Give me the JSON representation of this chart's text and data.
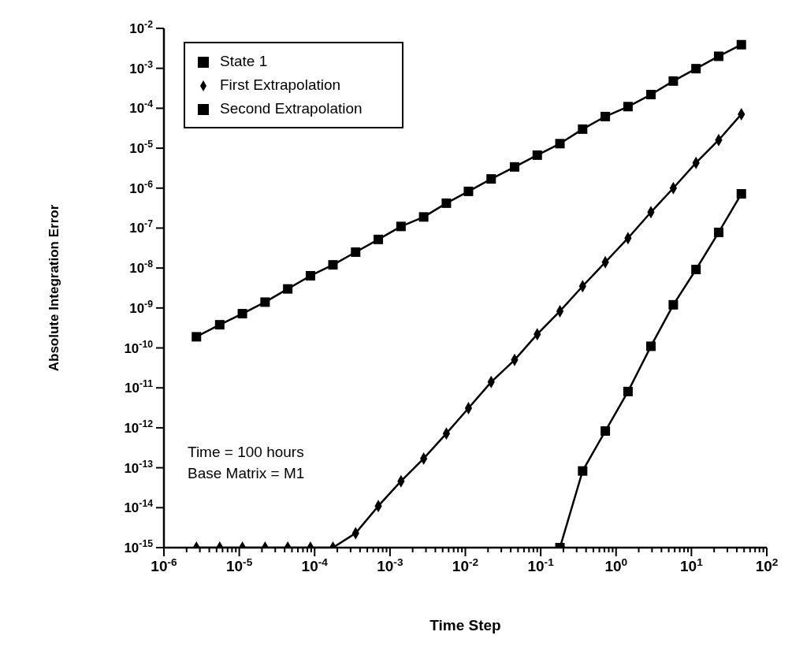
{
  "chart_data": {
    "type": "line",
    "xlabel": "Time Step",
    "ylabel": "Absolute  Integration  Error",
    "annotations": [
      "Time = 100 hours",
      "Base Matrix = M1"
    ],
    "x": [
      2.7e-06,
      5.5e-06,
      1.1e-05,
      2.2e-05,
      4.4e-05,
      8.8e-05,
      0.000175,
      0.00035,
      0.0007,
      0.0014,
      0.0028,
      0.0056,
      0.011,
      0.022,
      0.045,
      0.09,
      0.18,
      0.36,
      0.72,
      1.44,
      2.9,
      5.75,
      11.5,
      23,
      46
    ],
    "series": [
      {
        "name": "State 1",
        "color": "#000000",
        "marker": "square",
        "values": [
          1.9e-10,
          3.8e-10,
          7.2e-10,
          1.4e-09,
          3e-09,
          6.4e-09,
          1.2e-08,
          2.5e-08,
          5.2e-08,
          1.1e-07,
          1.9e-07,
          4.2e-07,
          8.3e-07,
          1.7e-06,
          3.4e-06,
          6.7e-06,
          1.3e-05,
          3e-05,
          6.2e-05,
          0.00011,
          0.00022,
          0.00048,
          0.00098,
          0.002,
          0.0039
        ]
      },
      {
        "name": "First Extrapolation",
        "color": "#000000",
        "marker": "diamond",
        "values": [
          1e-15,
          1e-15,
          1e-15,
          1e-15,
          1e-15,
          1e-15,
          1e-15,
          2.3e-15,
          1.1e-14,
          4.6e-14,
          1.7e-13,
          7.2e-13,
          3.1e-12,
          1.4e-11,
          5e-11,
          2.2e-10,
          8.3e-10,
          3.5e-09,
          1.4e-08,
          5.6e-08,
          2.5e-07,
          1e-06,
          4.3e-06,
          1.6e-05,
          7.1e-05
        ]
      },
      {
        "name": "Second Extrapolation",
        "color": "#000000",
        "marker": "square",
        "x": [
          0.18,
          0.36,
          0.72,
          1.44,
          2.9,
          5.75,
          11.5,
          23,
          46
        ],
        "values": [
          1e-15,
          8.3e-14,
          8.3e-13,
          8.1e-12,
          1.1e-10,
          1.2e-09,
          9.2e-09,
          7.8e-08,
          7.2e-07
        ]
      }
    ],
    "log": "xy",
    "legend": "top left",
    "line_style": "solid",
    "xlim": [
      1e-06,
      100
    ],
    "ylim": [
      1e-15,
      0.01
    ],
    "xticks": [
      {
        "value": 1e-06,
        "label": "10$^{-6}$"
      },
      {
        "value": 2e-06,
        "label": null
      },
      {
        "value": 3e-06,
        "label": null
      },
      {
        "value": 4e-06,
        "label": null
      },
      {
        "value": 5e-06,
        "label": null
      },
      {
        "value": 6e-06,
        "label": null
      },
      {
        "value": 7e-06,
        "label": null
      },
      {
        "value": 8e-06,
        "label": null
      },
      {
        "value": 9e-06,
        "label": null
      },
      {
        "value": 1e-05,
        "label": "10$^{-5}$"
      },
      {
        "value": 2e-05,
        "label": null
      },
      {
        "value": 3e-05,
        "label": null
      },
      {
        "value": 4e-05,
        "label": null
      },
      {
        "value": 5e-05,
        "label": null
      },
      {
        "value": 6e-05,
        "label": null
      },
      {
        "value": 7e-05,
        "label": null
      },
      {
        "value": 8e-05,
        "label": null
      },
      {
        "value": 9e-05,
        "label": null
      },
      {
        "value": 0.0001,
        "label": "10$^{-4}$"
      },
      {
        "value": 0.0002,
        "label": null
      },
      {
        "value": 0.0003,
        "label": null
      },
      {
        "value": 0.0004,
        "label": null
      },
      {
        "value": 0.0005,
        "label": null
      },
      {
        "value": 0.0006,
        "label": null
      },
      {
        "value": 0.0007,
        "label": null
      },
      {
        "value": 0.0008,
        "label": null
      },
      {
        "value": 0.0009,
        "label": null
      },
      {
        "value": 0.001,
        "label": "10$^{-3}$"
      },
      {
        "value": 0.002,
        "label": null
      },
      {
        "value": 0.003,
        "label": null
      },
      {
        "value": 0.004,
        "label": null
      },
      {
        "value": 0.005,
        "label": null
      },
      {
        "value": 0.006,
        "label": null
      },
      {
        "value": 0.007,
        "label": null
      },
      {
        "value": 0.008,
        "label": null
      },
      {
        "value": 0.009,
        "label": null
      },
      {
        "value": 0.01,
        "label": "10$^{-2}$"
      },
      {
        "value": 0.02,
        "label": null
      },
      {
        "value": 0.03,
        "label": null
      },
      {
        "value": 0.04,
        "label": null
      },
      {
        "value": 0.05,
        "label": null
      },
      {
        "value": 0.06,
        "label": null
      },
      {
        "value": 0.07,
        "label": null
      },
      {
        "value": 0.08,
        "label": null
      },
      {
        "value": 0.09,
        "label": null
      },
      {
        "value": 0.1,
        "label": "10$^{-1}$"
      },
      {
        "value": 0.2,
        "label": null
      },
      {
        "value": 0.3,
        "label": null
      },
      {
        "value": 0.4,
        "label": null
      },
      {
        "value": 0.5,
        "label": null
      },
      {
        "value": 0.6,
        "label": null
      },
      {
        "value": 0.7,
        "label": null
      },
      {
        "value": 0.8,
        "label": null
      },
      {
        "value": 0.9,
        "label": null
      },
      {
        "value": 1,
        "label": "10$^{0}$"
      },
      {
        "value": 2,
        "label": null
      },
      {
        "value": 3,
        "label": null
      },
      {
        "value": 4,
        "label": null
      },
      {
        "value": 5,
        "label": null
      },
      {
        "value": 6,
        "label": null
      },
      {
        "value": 7,
        "label": null
      },
      {
        "value": 8,
        "label": null
      },
      {
        "value": 9,
        "label": null
      },
      {
        "value": 10,
        "label": "10$^{1}$"
      },
      {
        "value": 20,
        "label": null
      },
      {
        "value": 30,
        "label": null
      },
      {
        "value": 40,
        "label": null
      },
      {
        "value": 50,
        "label": null
      },
      {
        "value": 60,
        "label": null
      },
      {
        "value": 70,
        "label": null
      },
      {
        "value": 80,
        "label": null
      },
      {
        "value": 90,
        "label": null
      },
      {
        "value": 100,
        "label": "10$^{2}$"
      }
    ],
    "yticks": [
      {
        "value": 1e-15,
        "label": "10$^{-15}$"
      },
      {
        "value": 1e-14,
        "label": "10$^{-14}$"
      },
      {
        "value": 1e-13,
        "label": "10$^{-13}$"
      },
      {
        "value": 1e-12,
        "label": "10$^{-12}$"
      },
      {
        "value": 1e-11,
        "label": "10$^{-11}$"
      },
      {
        "value": 1e-10,
        "label": "10$^{-10}$"
      },
      {
        "value": 1e-09,
        "label": "10$^{-9}$"
      },
      {
        "value": 1e-08,
        "label": "10$^{-8}$"
      },
      {
        "value": 1e-07,
        "label": "10$^{-7}$"
      },
      {
        "value": 1e-06,
        "label": "10$^{-6}$"
      },
      {
        "value": 1e-05,
        "label": "10$^{-5}$"
      },
      {
        "value": 0.0001,
        "label": "10$^{-4}$"
      },
      {
        "value": 0.001,
        "label": "10$^{-3}$"
      },
      {
        "value": 0.01,
        "label": "10$^{-2}$"
      }
    ]
  }
}
